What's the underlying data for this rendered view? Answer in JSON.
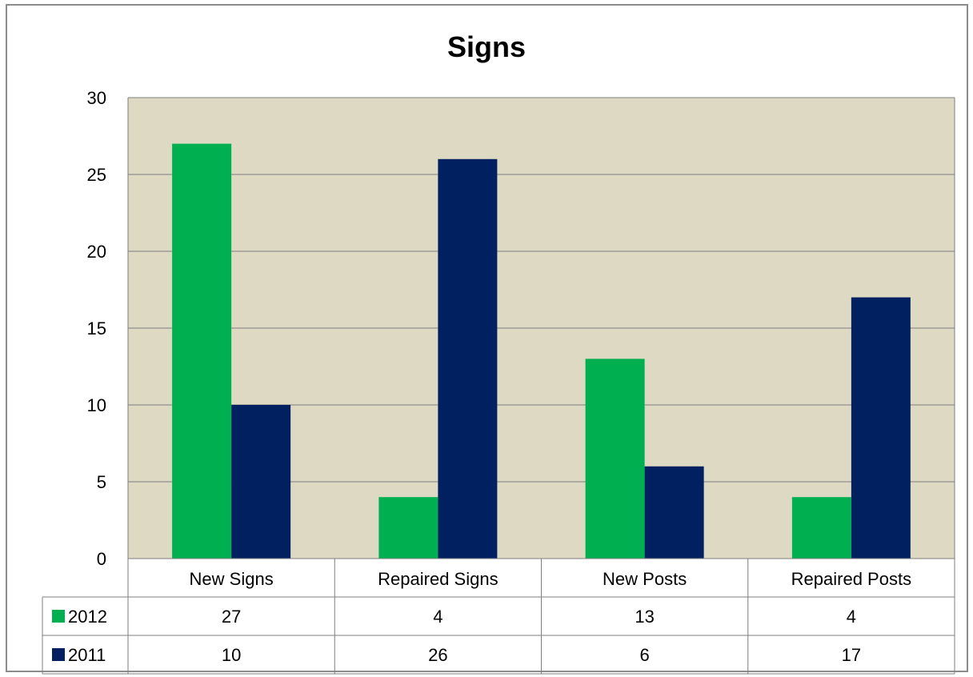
{
  "chart_data": {
    "type": "bar",
    "title": "Signs",
    "categories": [
      "New Signs",
      "Repaired Signs",
      "New Posts",
      "Repaired Posts"
    ],
    "series": [
      {
        "name": "2012",
        "values": [
          27,
          4,
          13,
          4
        ],
        "color": "#00b050"
      },
      {
        "name": "2011",
        "values": [
          10,
          26,
          6,
          17
        ],
        "color": "#002060"
      }
    ],
    "ylim": [
      0,
      30
    ],
    "yticks": [
      0,
      5,
      10,
      15,
      20,
      25,
      30
    ],
    "grid": true,
    "plot_background": "#ddd9c3",
    "legend": "data-table"
  }
}
